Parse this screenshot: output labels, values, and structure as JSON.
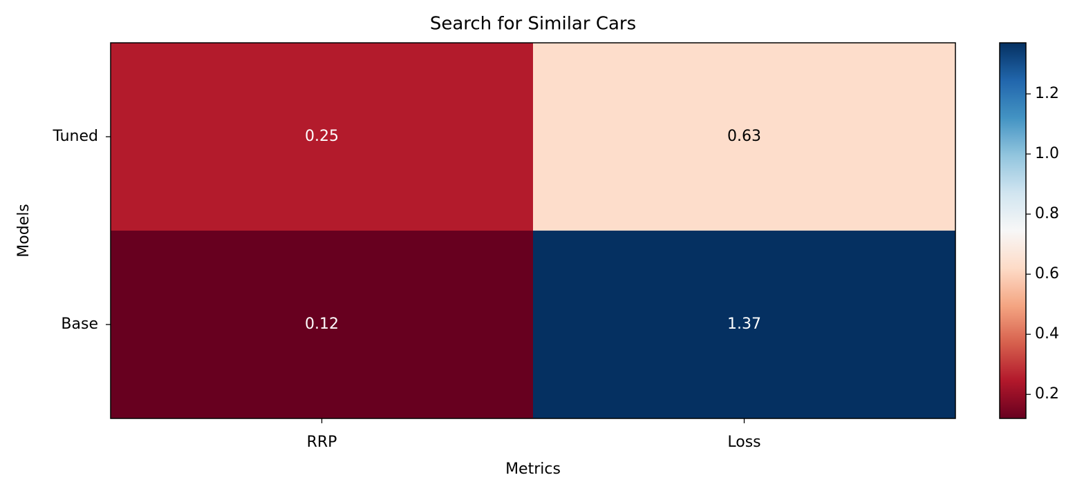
{
  "chart_data": {
    "type": "heatmap",
    "title": "Search for Similar Cars",
    "xlabel": "Metrics",
    "ylabel": "Models",
    "x_categories": [
      "RRP",
      "Loss"
    ],
    "y_categories": [
      "Tuned",
      "Base"
    ],
    "values": [
      [
        0.25,
        0.63
      ],
      [
        0.12,
        1.37
      ]
    ],
    "colormap": "RdBu",
    "clim": [
      0.12,
      1.37
    ],
    "colorbar_ticks": [
      0.2,
      0.4,
      0.6,
      0.8,
      {
        "value": 1,
        "label": "1.0"
      },
      1.2
    ]
  }
}
